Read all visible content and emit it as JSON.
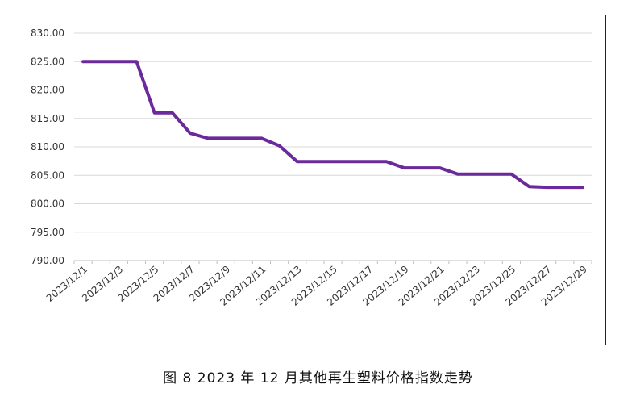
{
  "caption": "图 8  2023 年 12 月其他再生塑料价格指数走势",
  "colors": {
    "line": "#6a2a9c",
    "grid": "#d9d9d9",
    "axis": "#bfbfbf"
  },
  "chart_data": {
    "type": "line",
    "title": "",
    "xlabel": "",
    "ylabel": "",
    "ylim": [
      790,
      830
    ],
    "y_ticks": [
      "790.00",
      "795.00",
      "800.00",
      "805.00",
      "810.00",
      "815.00",
      "820.00",
      "825.00",
      "830.00"
    ],
    "x_tick_labels": [
      "2023/12/1",
      "2023/12/3",
      "2023/12/5",
      "2023/12/7",
      "2023/12/9",
      "2023/12/11",
      "2023/12/13",
      "2023/12/15",
      "2023/12/17",
      "2023/12/19",
      "2023/12/21",
      "2023/12/23",
      "2023/12/25",
      "2023/12/27",
      "2023/12/29"
    ],
    "grid": true,
    "legend": "none",
    "x": [
      "2023/12/1",
      "2023/12/2",
      "2023/12/3",
      "2023/12/4",
      "2023/12/5",
      "2023/12/6",
      "2023/12/7",
      "2023/12/8",
      "2023/12/9",
      "2023/12/10",
      "2023/12/11",
      "2023/12/12",
      "2023/12/13",
      "2023/12/14",
      "2023/12/15",
      "2023/12/16",
      "2023/12/17",
      "2023/12/18",
      "2023/12/19",
      "2023/12/20",
      "2023/12/21",
      "2023/12/22",
      "2023/12/23",
      "2023/12/24",
      "2023/12/25",
      "2023/12/26",
      "2023/12/27",
      "2023/12/28",
      "2023/12/29"
    ],
    "series": [
      {
        "values": [
          825.0,
          825.0,
          825.0,
          825.0,
          816.0,
          816.0,
          812.4,
          811.5,
          811.5,
          811.5,
          811.5,
          810.2,
          807.4,
          807.4,
          807.4,
          807.4,
          807.4,
          807.4,
          806.3,
          806.3,
          806.3,
          805.2,
          805.2,
          805.2,
          805.2,
          803.0,
          802.9,
          802.9,
          802.9
        ]
      }
    ]
  }
}
